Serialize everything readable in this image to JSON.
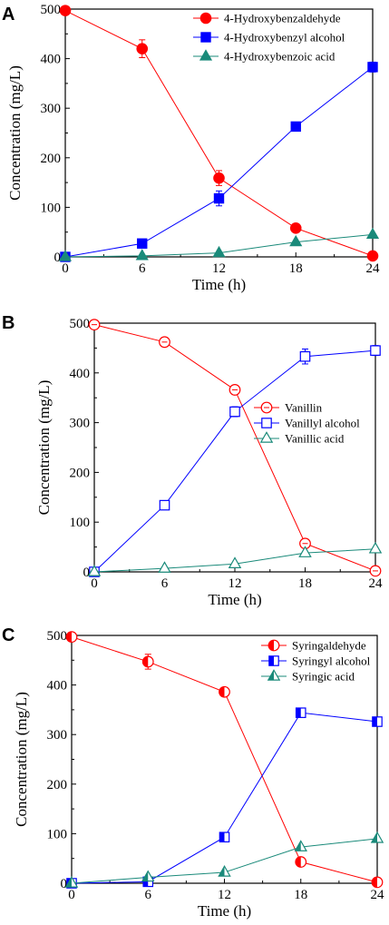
{
  "chart_data": [
    {
      "panel": "A",
      "type": "line",
      "xlabel": "Time (h)",
      "ylabel": "Concentration (mg/L)",
      "xlim": [
        0,
        24
      ],
      "ylim": [
        0,
        500
      ],
      "xticks": [
        0,
        6,
        12,
        18,
        24
      ],
      "yticks": [
        0,
        100,
        200,
        300,
        400,
        500
      ],
      "grid": false,
      "legend_position": "top-right",
      "x": [
        0,
        6,
        12,
        18,
        24
      ],
      "series": [
        {
          "name": "4-Hydroxybenzaldehyde",
          "color": "#ff0000",
          "marker": "circle",
          "fill": "full",
          "values": [
            497,
            420,
            159,
            58,
            2
          ],
          "errors": [
            0,
            18,
            15,
            0,
            0
          ]
        },
        {
          "name": "4-Hydroxybenzyl alcohol",
          "color": "#0000ff",
          "marker": "square",
          "fill": "full",
          "values": [
            0,
            27,
            118,
            263,
            383
          ],
          "errors": [
            0,
            0,
            15,
            0,
            10
          ]
        },
        {
          "name": "4-Hydroxybenzoic acid",
          "color": "#1a8a7a",
          "marker": "triangle",
          "fill": "full",
          "values": [
            0,
            2,
            8,
            30,
            45
          ],
          "errors": [
            0,
            0,
            0,
            0,
            0
          ]
        }
      ]
    },
    {
      "panel": "B",
      "type": "line",
      "xlabel": "Time (h)",
      "ylabel": "Concentration (mg/L)",
      "xlim": [
        0,
        24
      ],
      "ylim": [
        0,
        500
      ],
      "xticks": [
        0,
        6,
        12,
        18,
        24
      ],
      "yticks": [
        0,
        100,
        200,
        300,
        400,
        500
      ],
      "grid": false,
      "legend_position": "center-right",
      "x": [
        0,
        6,
        12,
        18,
        24
      ],
      "series": [
        {
          "name": "Vanillin",
          "color": "#ff0000",
          "marker": "circle",
          "fill": "open",
          "values": [
            497,
            462,
            366,
            57,
            2
          ],
          "errors": [
            0,
            0,
            0,
            0,
            0
          ]
        },
        {
          "name": "Vanillyl alcohol",
          "color": "#0000ff",
          "marker": "square",
          "fill": "open",
          "values": [
            0,
            134,
            322,
            433,
            445
          ],
          "errors": [
            0,
            0,
            10,
            15,
            10
          ]
        },
        {
          "name": "Vanillic acid",
          "color": "#1a8a7a",
          "marker": "triangle",
          "fill": "open",
          "values": [
            0,
            7,
            16,
            38,
            46
          ],
          "errors": [
            0,
            0,
            0,
            0,
            0
          ]
        }
      ]
    },
    {
      "panel": "C",
      "type": "line",
      "xlabel": "Time (h)",
      "ylabel": "Concentration (mg/L)",
      "xlim": [
        0,
        24
      ],
      "ylim": [
        0,
        500
      ],
      "xticks": [
        0,
        6,
        12,
        18,
        24
      ],
      "yticks": [
        0,
        100,
        200,
        300,
        400,
        500
      ],
      "grid": false,
      "legend_position": "top-right",
      "x": [
        0,
        6,
        12,
        18,
        24
      ],
      "series": [
        {
          "name": "Syringaldehyde",
          "color": "#ff0000",
          "marker": "circle",
          "fill": "half",
          "values": [
            497,
            447,
            386,
            43,
            2
          ],
          "errors": [
            0,
            15,
            0,
            0,
            0
          ]
        },
        {
          "name": "Syringyl alcohol",
          "color": "#0000ff",
          "marker": "square",
          "fill": "half",
          "values": [
            0,
            3,
            93,
            344,
            326
          ],
          "errors": [
            0,
            0,
            0,
            0,
            0
          ]
        },
        {
          "name": "Syringic acid",
          "color": "#1a8a7a",
          "marker": "triangle",
          "fill": "half",
          "values": [
            0,
            12,
            22,
            73,
            90
          ],
          "errors": [
            0,
            0,
            0,
            0,
            0
          ]
        }
      ]
    }
  ]
}
